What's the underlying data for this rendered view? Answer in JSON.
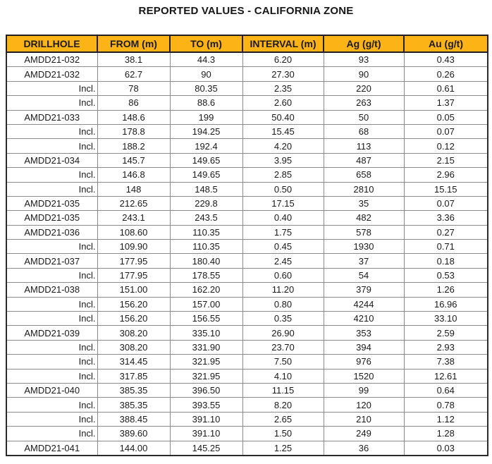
{
  "title": "REPORTED VALUES - CALIFORNIA ZONE",
  "table": {
    "header_bg": "#FCB316",
    "header_text_color": "#1a1a1a",
    "columns": [
      "DRILLHOLE",
      "FROM (m)",
      "TO (m)",
      "INTERVAL (m)",
      "Ag (g/t)",
      "Au (g/t)"
    ],
    "rows": [
      {
        "cells": [
          "AMDD21-032",
          "38.1",
          "44.3",
          "6.20",
          "93",
          "0.43"
        ],
        "group_start": true
      },
      {
        "cells": [
          "AMDD21-032",
          "62.7",
          "90",
          "27.30",
          "90",
          "0.26"
        ],
        "group_start": true
      },
      {
        "cells": [
          "Incl.",
          "78",
          "80.35",
          "2.35",
          "220",
          "0.61"
        ],
        "group_start": false
      },
      {
        "cells": [
          "Incl.",
          "86",
          "88.6",
          "2.60",
          "263",
          "1.37"
        ],
        "group_start": false
      },
      {
        "cells": [
          "AMDD21-033",
          "148.6",
          "199",
          "50.40",
          "50",
          "0.05"
        ],
        "group_start": true
      },
      {
        "cells": [
          "Incl.",
          "178.8",
          "194.25",
          "15.45",
          "68",
          "0.07"
        ],
        "group_start": false
      },
      {
        "cells": [
          "Incl.",
          "188.2",
          "192.4",
          "4.20",
          "113",
          "0.12"
        ],
        "group_start": false
      },
      {
        "cells": [
          "AMDD21-034",
          "145.7",
          "149.65",
          "3.95",
          "487",
          "2.15"
        ],
        "group_start": true
      },
      {
        "cells": [
          "Incl.",
          "146.8",
          "149.65",
          "2.85",
          "658",
          "2.96"
        ],
        "group_start": false
      },
      {
        "cells": [
          "Incl.",
          "148",
          "148.5",
          "0.50",
          "2810",
          "15.15"
        ],
        "group_start": false
      },
      {
        "cells": [
          "AMDD21-035",
          "212.65",
          "229.8",
          "17.15",
          "35",
          "0.07"
        ],
        "group_start": true
      },
      {
        "cells": [
          "AMDD21-035",
          "243.1",
          "243.5",
          "0.40",
          "482",
          "3.36"
        ],
        "group_start": true
      },
      {
        "cells": [
          "AMDD21-036",
          "108.60",
          "110.35",
          "1.75",
          "578",
          "0.27"
        ],
        "group_start": true
      },
      {
        "cells": [
          "Incl.",
          "109.90",
          "110.35",
          "0.45",
          "1930",
          "0.71"
        ],
        "group_start": false
      },
      {
        "cells": [
          "AMDD21-037",
          "177.95",
          "180.40",
          "2.45",
          "37",
          "0.18"
        ],
        "group_start": true
      },
      {
        "cells": [
          "Incl.",
          "177.95",
          "178.55",
          "0.60",
          "54",
          "0.53"
        ],
        "group_start": false
      },
      {
        "cells": [
          "AMDD21-038",
          "151.00",
          "162.20",
          "11.20",
          "379",
          "1.26"
        ],
        "group_start": true
      },
      {
        "cells": [
          "Incl.",
          "156.20",
          "157.00",
          "0.80",
          "4244",
          "16.96"
        ],
        "group_start": false
      },
      {
        "cells": [
          "Incl.",
          "156.20",
          "156.55",
          "0.35",
          "4210",
          "33.10"
        ],
        "group_start": false
      },
      {
        "cells": [
          "AMDD21-039",
          "308.20",
          "335.10",
          "26.90",
          "353",
          "2.59"
        ],
        "group_start": true
      },
      {
        "cells": [
          "Incl.",
          "308.20",
          "331.90",
          "23.70",
          "394",
          "2.93"
        ],
        "group_start": false
      },
      {
        "cells": [
          "Incl.",
          "314.45",
          "321.95",
          "7.50",
          "976",
          "7.38"
        ],
        "group_start": false
      },
      {
        "cells": [
          "Incl.",
          "317.85",
          "321.95",
          "4.10",
          "1520",
          "12.61"
        ],
        "group_start": false
      },
      {
        "cells": [
          "AMDD21-040",
          "385.35",
          "396.50",
          "11.15",
          "99",
          "0.64"
        ],
        "group_start": true
      },
      {
        "cells": [
          "Incl.",
          "385.35",
          "393.55",
          "8.20",
          "120",
          "0.78"
        ],
        "group_start": false
      },
      {
        "cells": [
          "Incl.",
          "388.45",
          "391.10",
          "2.65",
          "210",
          "1.12"
        ],
        "group_start": false
      },
      {
        "cells": [
          "Incl.",
          "389.60",
          "391.10",
          "1.50",
          "249",
          "1.28"
        ],
        "group_start": false
      },
      {
        "cells": [
          "AMDD21-041",
          "144.00",
          "145.25",
          "1.25",
          "36",
          "0.03"
        ],
        "group_start": true
      }
    ]
  }
}
